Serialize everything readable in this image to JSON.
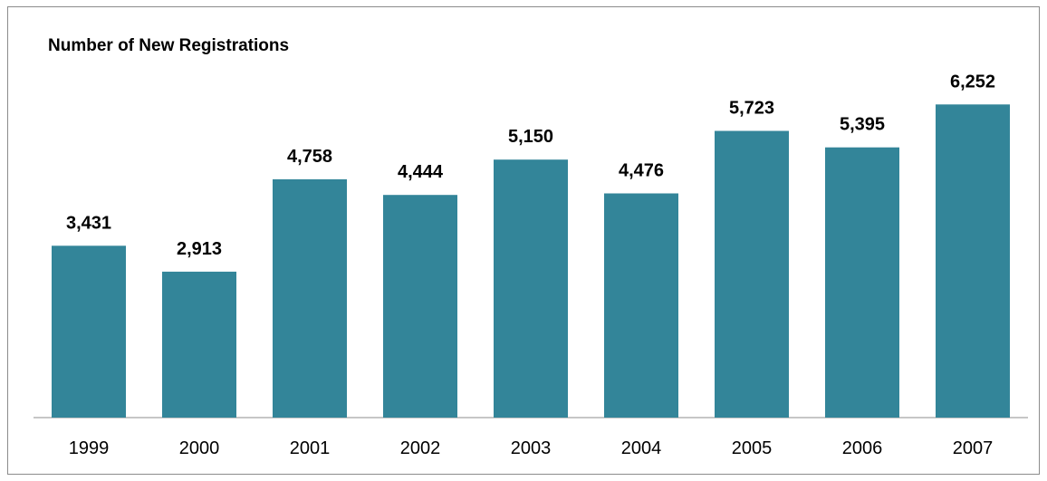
{
  "chart_data": {
    "type": "bar",
    "title": "Number of New Registrations",
    "categories": [
      "1999",
      "2000",
      "2001",
      "2002",
      "2003",
      "2004",
      "2005",
      "2006",
      "2007"
    ],
    "values": [
      3431,
      2913,
      4758,
      4444,
      5150,
      4476,
      5723,
      5395,
      6252
    ],
    "value_labels": [
      "3,431",
      "2,913",
      "4,758",
      "4,444",
      "5,150",
      "4,476",
      "5,723",
      "5,395",
      "6,252"
    ],
    "xlabel": "",
    "ylabel": "",
    "ylim": [
      0,
      7000
    ],
    "grid": false,
    "legend": "none",
    "colors": {
      "bar": "#338599",
      "axis": "#8c8c8c",
      "border": "#8c8c8c"
    }
  }
}
